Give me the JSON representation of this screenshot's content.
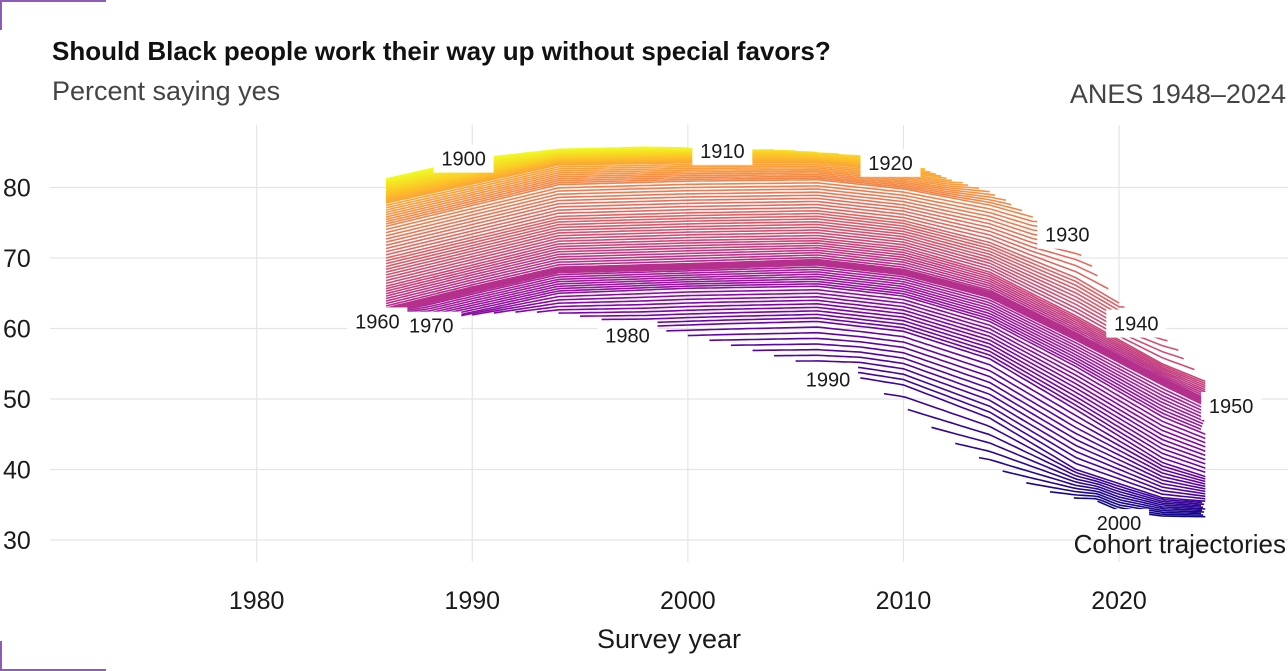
{
  "header": {
    "title": "Should Black people work their way up without special favors?",
    "subtitle": "Percent saying yes",
    "source": "ANES 1948–2024"
  },
  "colors": {
    "background": "#ffffff",
    "grid": "#e5e5e5",
    "frame_accent": "#8e5bb8",
    "highlight_line": "#b52f8c",
    "palette": [
      "#f0f921",
      "#fdc328",
      "#f89441",
      "#e56b5d",
      "#cb4778",
      "#a72197",
      "#7e03a8",
      "#4b03a1",
      "#0d0887"
    ]
  },
  "chart_data": {
    "type": "line",
    "title": "Should Black people work their way up without special favors?",
    "subtitle": "Percent saying yes",
    "xlabel": "Survey year",
    "ylabel": "",
    "caption": "Cohort trajectories",
    "xlim": [
      1971,
      2028
    ],
    "ylim": [
      29,
      90
    ],
    "x_ticks": [
      1980,
      1990,
      2000,
      2010,
      2020
    ],
    "y_ticks": [
      30,
      40,
      50,
      60,
      70,
      80
    ],
    "grid": true,
    "legend": "none",
    "series_variable": "birth cohort",
    "cohort_range": [
      1900,
      2000
    ],
    "cohorts_labeled": [
      1900,
      1910,
      1920,
      1930,
      1940,
      1950,
      1960,
      1970,
      1980,
      1990,
      2000
    ],
    "highlighted_cohort": 1960,
    "series_samples": [
      {
        "cohort": 1900,
        "x": [
          1986,
          1990,
          1994,
          1998,
          2000
        ],
        "y": [
          81.2,
          84.0,
          85.4,
          85.7,
          85.6
        ]
      },
      {
        "cohort": 1910,
        "x": [
          1986,
          1994,
          2000,
          2004,
          2008,
          2010
        ],
        "y": [
          79.5,
          84.2,
          84.6,
          84.9,
          84.2,
          83.5
        ]
      },
      {
        "cohort": 1920,
        "x": [
          1986,
          1994,
          2000,
          2006,
          2010,
          2012
        ],
        "y": [
          77.8,
          83.2,
          83.5,
          83.5,
          82.2,
          81.3
        ]
      },
      {
        "cohort": 1930,
        "x": [
          1986,
          1994,
          2000,
          2006,
          2010,
          2014,
          2016
        ],
        "y": [
          74.5,
          80.4,
          80.9,
          81.1,
          79.8,
          77.5,
          75.8
        ]
      },
      {
        "cohort": 1940,
        "x": [
          1986,
          1994,
          2000,
          2006,
          2010,
          2014,
          2018,
          2020
        ],
        "y": [
          70.0,
          75.9,
          76.4,
          76.7,
          75.3,
          72.2,
          67.2,
          63.6
        ]
      },
      {
        "cohort": 1950,
        "x": [
          1986,
          1994,
          2000,
          2006,
          2010,
          2014,
          2018,
          2022,
          2024
        ],
        "y": [
          66.0,
          72.0,
          72.5,
          72.8,
          71.5,
          68.0,
          61.8,
          55.0,
          52.5
        ]
      },
      {
        "cohort": 1960,
        "x": [
          1986,
          1990,
          1994,
          2000,
          2006,
          2010,
          2014,
          2018,
          2022,
          2024
        ],
        "y": [
          62.5,
          65.5,
          68.3,
          68.8,
          69.4,
          68.0,
          64.8,
          58.8,
          52.5,
          49.5
        ]
      },
      {
        "cohort": 1970,
        "x": [
          1988,
          1994,
          2000,
          2006,
          2010,
          2014,
          2018,
          2022,
          2024
        ],
        "y": [
          61.0,
          65.0,
          65.7,
          66.0,
          64.6,
          61.0,
          54.6,
          47.5,
          45.0
        ]
      },
      {
        "cohort": 1980,
        "x": [
          1998,
          2002,
          2006,
          2010,
          2014,
          2018,
          2022,
          2024
        ],
        "y": [
          60.3,
          60.7,
          61.0,
          59.6,
          55.7,
          48.5,
          41.0,
          39.0
        ]
      },
      {
        "cohort": 1990,
        "x": [
          2008,
          2010,
          2014,
          2018,
          2022,
          2024
        ],
        "y": [
          53.0,
          52.0,
          47.3,
          40.0,
          36.0,
          35.5
        ]
      },
      {
        "cohort": 2000,
        "x": [
          2019,
          2020,
          2022,
          2024
        ],
        "y": [
          35.5,
          34.2,
          33.4,
          33.3
        ]
      }
    ]
  }
}
